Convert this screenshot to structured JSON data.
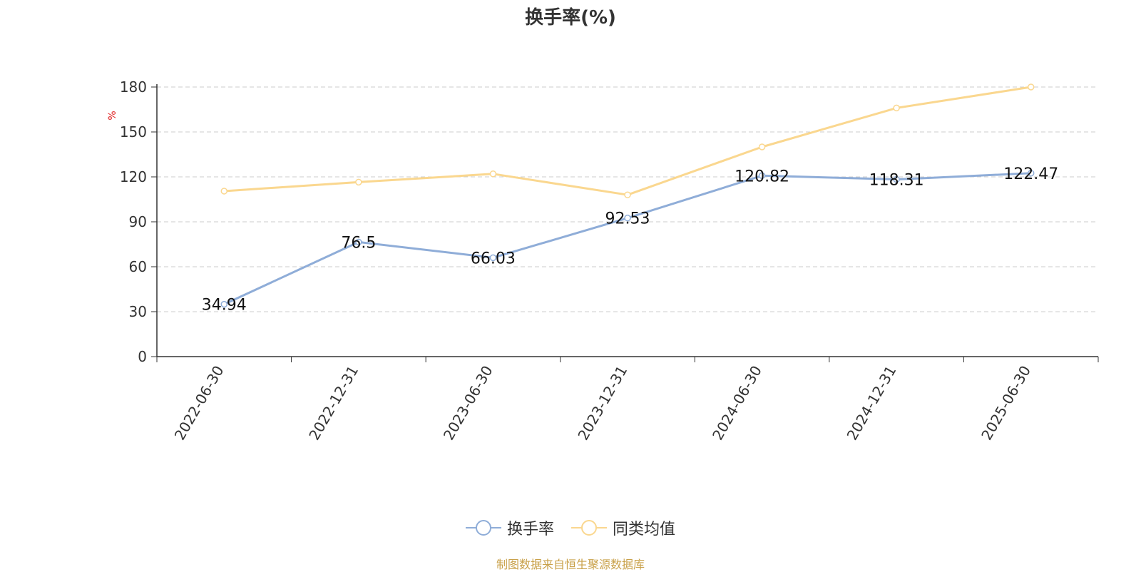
{
  "chart_data": {
    "type": "line",
    "title": "换手率(%)",
    "ylabel": "%",
    "xlabel": "",
    "ylim": [
      0,
      180
    ],
    "yticks": [
      0,
      30,
      60,
      90,
      120,
      150,
      180
    ],
    "categories": [
      "2022-06-30",
      "2022-12-31",
      "2023-06-30",
      "2023-12-31",
      "2024-06-30",
      "2024-12-31",
      "2025-06-30"
    ],
    "series": [
      {
        "name": "换手率",
        "color": "#8fadd8",
        "values": [
          34.94,
          76.5,
          66.03,
          92.53,
          120.82,
          118.31,
          122.47
        ],
        "labels": [
          "34.94",
          "76.5",
          "66.03",
          "92.53",
          "120.82",
          "118.31",
          "122.47"
        ]
      },
      {
        "name": "同类均值",
        "color": "#fad78f",
        "values": [
          110.5,
          116.5,
          122,
          108,
          140,
          166,
          180
        ]
      }
    ],
    "grid": true,
    "legend_position": "bottom"
  },
  "footer": "制图数据来自恒生聚源数据库"
}
